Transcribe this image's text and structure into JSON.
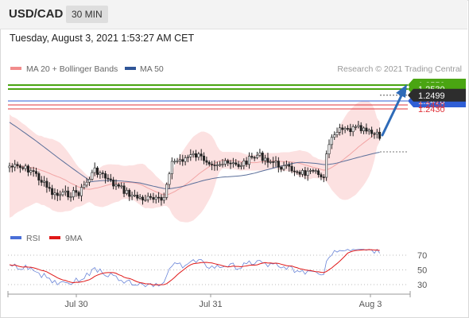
{
  "header": {
    "symbol": "USD/CAD",
    "timeframe": "30 MIN"
  },
  "datetime": "Tuesday, August 3, 2021 1:53:27 AM CET",
  "legend": {
    "bollinger": {
      "label": "MA 20 + Bollinger Bands",
      "color": "#f28c8c"
    },
    "ma50": {
      "label": "MA 50",
      "color": "#2f5597"
    },
    "copyright": "Research © 2021 Trading Central"
  },
  "rsi_legend": {
    "rsi": {
      "label": "RSI",
      "color": "#4a6fd8"
    },
    "ma9": {
      "label": "9MA",
      "color": "#e01818"
    }
  },
  "arrow": {
    "icon": "up-arrow-icon",
    "color": "#2e6bb8"
  },
  "chart_data": {
    "type": "candlestick",
    "x_ticks": [
      "Jul 30",
      "Jul 31",
      "Aug 3"
    ],
    "price_range": [
      1.242,
      1.2565
    ],
    "current_price": "1.2499",
    "levels": [
      {
        "label": "1.2550",
        "value": 1.255,
        "kind": "resistance",
        "color": "#4aa512"
      },
      {
        "label": "1.2530",
        "value": 1.253,
        "kind": "resistance",
        "color": "#4aa512"
      },
      {
        "label": "1.2470",
        "value": 1.247,
        "kind": "pivot",
        "color": "#2f5fd6"
      },
      {
        "label": "1.2450",
        "value": 1.245,
        "kind": "support",
        "color": "#e0343b"
      },
      {
        "label": "1.2430",
        "value": 1.243,
        "kind": "support",
        "color": "#e0343b"
      }
    ],
    "rsi_levels": [
      "70",
      "50",
      "30"
    ],
    "rsi_range": [
      10,
      90
    ]
  }
}
